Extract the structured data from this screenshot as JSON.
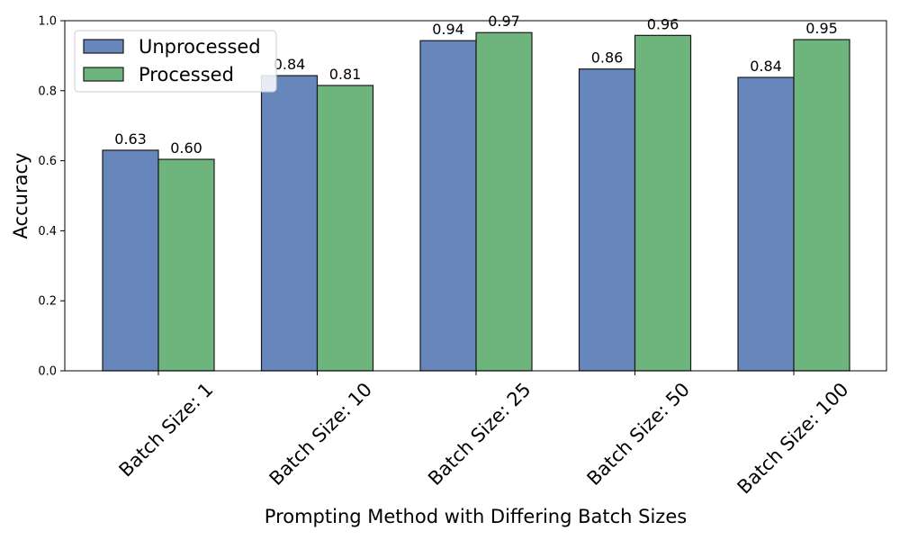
{
  "chart_data": {
    "type": "bar",
    "categories": [
      "Batch Size: 1",
      "Batch Size: 10",
      "Batch Size: 25",
      "Batch Size: 50",
      "Batch Size: 100"
    ],
    "series": [
      {
        "name": "Unprocessed",
        "color": "#6787bc",
        "values": [
          0.63,
          0.843,
          0.943,
          0.862,
          0.838
        ],
        "labels": [
          "0.63",
          "0.84",
          "0.94",
          "0.86",
          "0.84"
        ]
      },
      {
        "name": "Processed",
        "color": "#6db57d",
        "values": [
          0.604,
          0.815,
          0.966,
          0.958,
          0.946
        ],
        "labels": [
          "0.60",
          "0.81",
          "0.97",
          "0.96",
          "0.95"
        ]
      }
    ],
    "xlabel": "Prompting Method with Differing Batch Sizes",
    "ylabel": "Accuracy",
    "ylim": [
      0,
      1.0
    ],
    "yticks": [
      "0.0",
      "0.2",
      "0.4",
      "0.6",
      "0.8",
      "1.0"
    ],
    "grid": false,
    "legend_position": "top-left"
  }
}
